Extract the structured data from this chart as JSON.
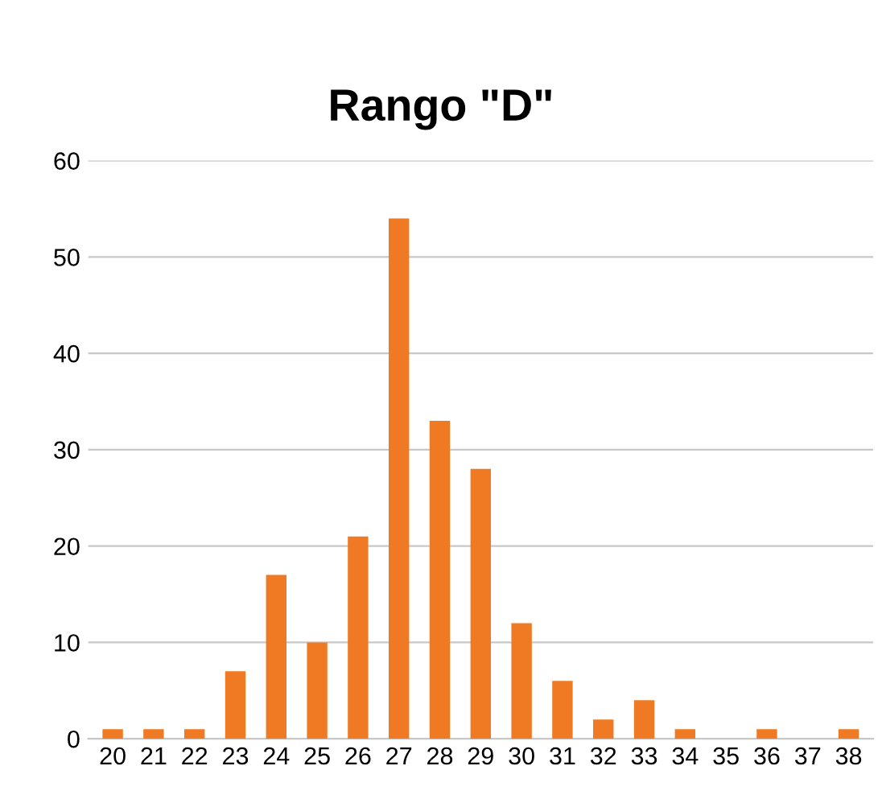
{
  "chart_data": {
    "type": "bar",
    "title": "Rango \"D\"",
    "categories": [
      "20",
      "21",
      "22",
      "23",
      "24",
      "25",
      "26",
      "27",
      "28",
      "29",
      "30",
      "31",
      "32",
      "33",
      "34",
      "35",
      "36",
      "37",
      "38"
    ],
    "values": [
      1,
      1,
      1,
      7,
      17,
      10,
      21,
      54,
      33,
      28,
      12,
      6,
      2,
      4,
      1,
      0,
      1,
      0,
      1
    ],
    "color": "#f07a23",
    "ylim": [
      0,
      60
    ],
    "yticks": [
      0,
      10,
      20,
      30,
      40,
      50,
      60
    ],
    "grid": "y",
    "legend": false
  }
}
